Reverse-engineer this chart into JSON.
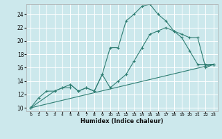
{
  "xlabel": "Humidex (Indice chaleur)",
  "bg_color": "#cce8ec",
  "grid_color": "#ffffff",
  "line_color": "#2e7d72",
  "xlim": [
    -0.5,
    23.5
  ],
  "ylim": [
    9.5,
    25.5
  ],
  "xticks": [
    0,
    1,
    2,
    3,
    4,
    5,
    6,
    7,
    8,
    9,
    10,
    11,
    12,
    13,
    14,
    15,
    16,
    17,
    18,
    19,
    20,
    21,
    22,
    23
  ],
  "yticks": [
    10,
    12,
    14,
    16,
    18,
    20,
    22,
    24
  ],
  "line1_x": [
    0,
    1,
    2,
    3,
    4,
    5,
    5,
    6,
    7,
    8,
    9,
    10,
    11,
    12,
    13,
    14,
    15,
    16,
    17,
    18,
    19,
    20,
    21,
    22,
    23
  ],
  "line1_y": [
    10,
    11.5,
    12.5,
    12.5,
    13,
    13,
    13.5,
    12.5,
    13,
    12.5,
    15,
    19,
    19,
    23,
    24,
    25.2,
    25.5,
    24,
    23,
    21.5,
    20.5,
    18.5,
    16.5,
    16.5,
    16.5
  ],
  "line2_x": [
    0,
    3,
    4,
    5,
    6,
    7,
    8,
    9,
    10,
    11,
    12,
    13,
    14,
    15,
    16,
    17,
    18,
    19,
    20,
    21,
    22,
    23
  ],
  "line2_y": [
    10,
    12.5,
    13,
    13.5,
    12.5,
    13,
    12.5,
    15,
    13,
    14,
    15,
    17,
    19,
    21,
    21.5,
    22,
    21.5,
    21,
    20.5,
    20.5,
    16,
    16.5
  ],
  "line3_x": [
    0,
    23
  ],
  "line3_y": [
    10,
    16.5
  ]
}
